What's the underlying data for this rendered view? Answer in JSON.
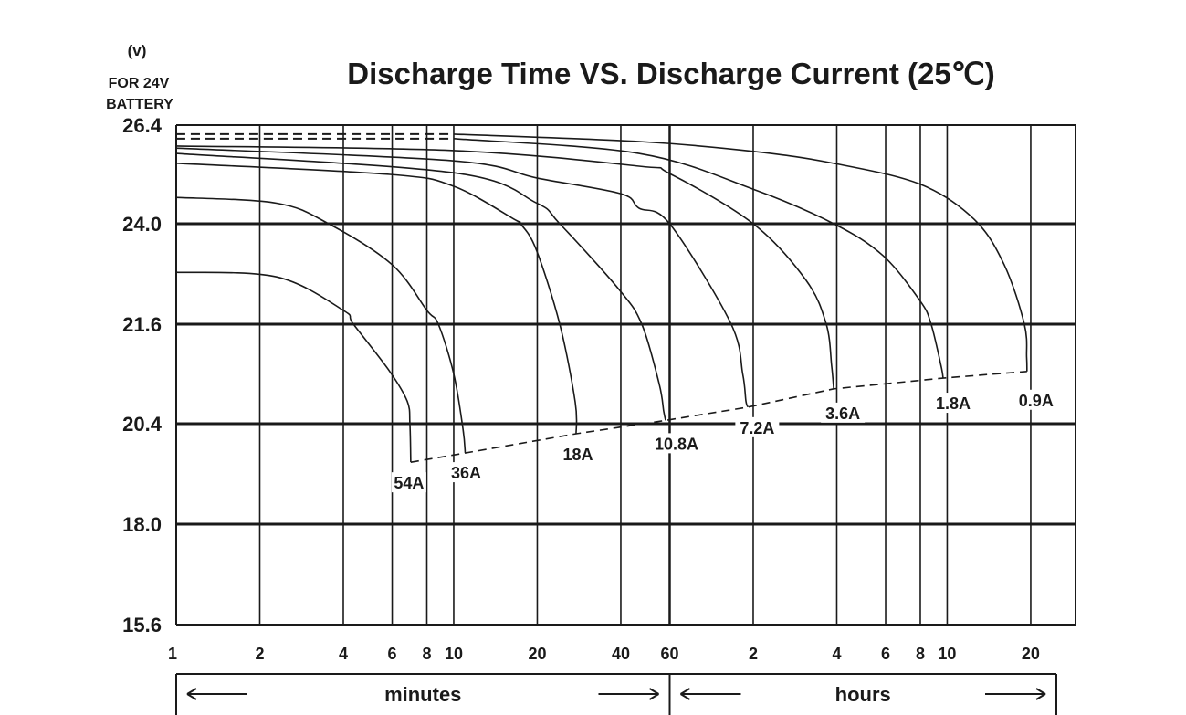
{
  "chart_data": {
    "type": "line",
    "title": "Discharge Time VS. Discharge Current (25℃)",
    "ylabel_unit": "(v)",
    "ylabel_note": [
      "FOR 24V",
      "BATTERY"
    ],
    "x_scale": "log",
    "xlim": [
      1,
      1740
    ],
    "x_units_note": "minutes",
    "y_ticks": [
      26.4,
      24.0,
      21.6,
      20.4,
      18.0,
      15.6
    ],
    "y_tick_labels": [
      "26.4",
      "24.0",
      "21.6",
      "20.4",
      "18.0",
      "15.6"
    ],
    "x_ticks": [
      {
        "label": "1",
        "minutes": 1
      },
      {
        "label": "2",
        "minutes": 2
      },
      {
        "label": "4",
        "minutes": 4
      },
      {
        "label": "6",
        "minutes": 6
      },
      {
        "label": "8",
        "minutes": 8
      },
      {
        "label": "10",
        "minutes": 10
      },
      {
        "label": "20",
        "minutes": 20
      },
      {
        "label": "40",
        "minutes": 40
      },
      {
        "label": "60",
        "minutes": 60
      },
      {
        "label": "2",
        "minutes": 120
      },
      {
        "label": "4",
        "minutes": 240
      },
      {
        "label": "6",
        "minutes": 360
      },
      {
        "label": "8",
        "minutes": 480
      },
      {
        "label": "10",
        "minutes": 600
      },
      {
        "label": "20",
        "minutes": 1200
      }
    ],
    "x_sections": [
      {
        "label": "minutes",
        "from": 1,
        "to": 60
      },
      {
        "label": "hours",
        "from": 60,
        "to": 1740
      }
    ],
    "grid": true,
    "series": [
      {
        "name": "54A",
        "dashed_until": 0,
        "points": [
          [
            1,
            22.84
          ],
          [
            2.3,
            22.73
          ],
          [
            4,
            21.93
          ],
          [
            4.35,
            21.6
          ],
          [
            5.88,
            21.03
          ],
          [
            6.8,
            20.67
          ],
          [
            6.95,
            20.4
          ],
          [
            7,
            19.48
          ]
        ]
      },
      {
        "name": "36A",
        "dashed_until": 0,
        "points": [
          [
            1,
            24.64
          ],
          [
            2.3,
            24.5
          ],
          [
            3.54,
            24.0
          ],
          [
            6,
            23.02
          ],
          [
            8,
            21.93
          ],
          [
            8.8,
            21.6
          ],
          [
            10,
            21.0
          ],
          [
            10.8,
            20.27
          ],
          [
            11,
            19.7
          ]
        ]
      },
      {
        "name": "18A",
        "dashed_until": 0,
        "points": [
          [
            1,
            25.47
          ],
          [
            5.88,
            25.2
          ],
          [
            10,
            24.91
          ],
          [
            16.5,
            24.11
          ],
          [
            17.4,
            24.0
          ],
          [
            19.8,
            23.39
          ],
          [
            24.1,
            21.6
          ],
          [
            27.4,
            20.66
          ],
          [
            27.6,
            20.16
          ]
        ]
      },
      {
        "name": "10.8A",
        "dashed_until": 0,
        "points": [
          [
            1,
            25.71
          ],
          [
            10,
            25.24
          ],
          [
            19.8,
            24.51
          ],
          [
            24.1,
            24.0
          ],
          [
            39.4,
            22.43
          ],
          [
            47.6,
            21.6
          ],
          [
            55,
            20.88
          ],
          [
            57.1,
            20.55
          ],
          [
            58,
            20.44
          ]
        ]
      },
      {
        "name": "7.2A",
        "dashed_until": 0,
        "points": [
          [
            1,
            25.84
          ],
          [
            10,
            25.53
          ],
          [
            20,
            25.11
          ],
          [
            40,
            24.73
          ],
          [
            46.5,
            24.38
          ],
          [
            60,
            24.0
          ],
          [
            99.3,
            21.64
          ],
          [
            110,
            21.0
          ],
          [
            113,
            20.67
          ],
          [
            115,
            20.6
          ]
        ]
      },
      {
        "name": "3.6A",
        "dashed_until": 0,
        "points": [
          [
            1,
            25.89
          ],
          [
            10,
            25.78
          ],
          [
            46.5,
            25.4
          ],
          [
            60,
            25.22
          ],
          [
            120,
            24.0
          ],
          [
            186,
            22.65
          ],
          [
            220,
            21.6
          ],
          [
            230,
            21.1
          ],
          [
            234,
            20.82
          ]
        ]
      },
      {
        "name": "1.8A",
        "dashed_until": 10,
        "points": [
          [
            1,
            26.07
          ],
          [
            10,
            26.07
          ],
          [
            46.5,
            25.71
          ],
          [
            120,
            24.84
          ],
          [
            234,
            24.0
          ],
          [
            352,
            23.24
          ],
          [
            480,
            22.15
          ],
          [
            525,
            21.6
          ],
          [
            570,
            21.1
          ],
          [
            580,
            20.95
          ]
        ]
      },
      {
        "name": "0.9A",
        "dashed_until": 10,
        "points": [
          [
            1,
            26.18
          ],
          [
            10,
            26.18
          ],
          [
            46.5,
            26.0
          ],
          [
            120,
            25.76
          ],
          [
            234,
            25.47
          ],
          [
            480,
            24.96
          ],
          [
            750,
            24.11
          ],
          [
            963,
            23.02
          ],
          [
            1138,
            21.6
          ],
          [
            1160,
            21.2
          ],
          [
            1163,
            21.03
          ]
        ]
      }
    ],
    "color": "#1a1a1a"
  }
}
